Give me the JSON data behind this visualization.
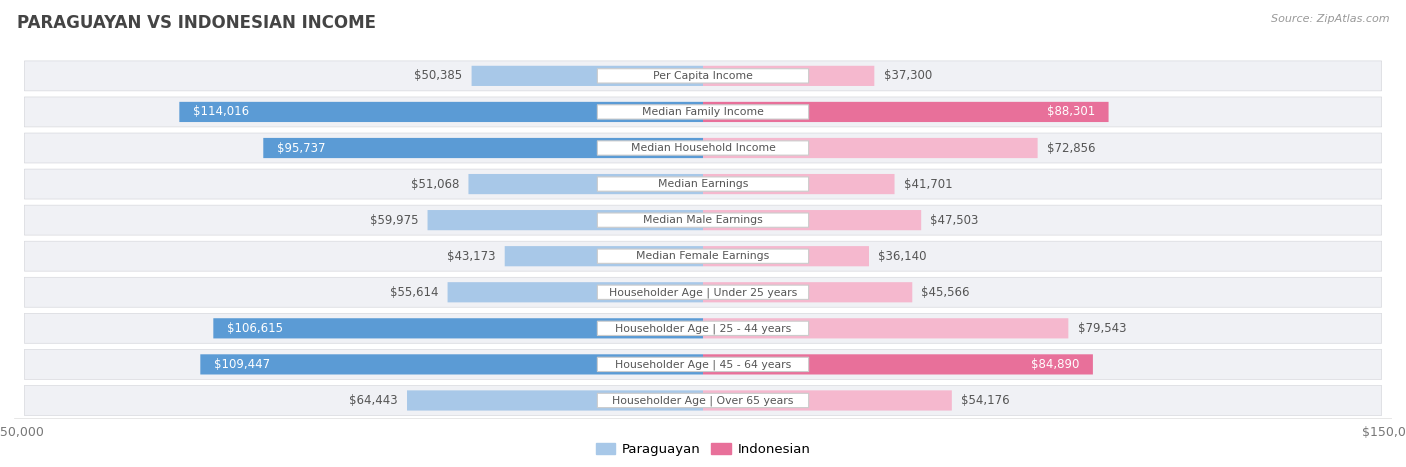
{
  "title": "PARAGUAYAN VS INDONESIAN INCOME",
  "source": "Source: ZipAtlas.com",
  "categories": [
    "Per Capita Income",
    "Median Family Income",
    "Median Household Income",
    "Median Earnings",
    "Median Male Earnings",
    "Median Female Earnings",
    "Householder Age | Under 25 years",
    "Householder Age | 25 - 44 years",
    "Householder Age | 45 - 64 years",
    "Householder Age | Over 65 years"
  ],
  "paraguayan_values": [
    50385,
    114016,
    95737,
    51068,
    59975,
    43173,
    55614,
    106615,
    109447,
    64443
  ],
  "indonesian_values": [
    37300,
    88301,
    72856,
    41701,
    47503,
    36140,
    45566,
    79543,
    84890,
    54176
  ],
  "max_val": 150000,
  "paraguayan_color_low": "#a8c8e8",
  "paraguayan_color_high": "#5b9bd5",
  "indonesian_color_low": "#f5b8ce",
  "indonesian_color_high": "#e8709a",
  "label_color_outside": "#555555",
  "label_color_inside": "#ffffff",
  "threshold": 80000,
  "row_bg": "#f0f1f5",
  "center_label_color": "#555555",
  "legend_paraguayan": "Paraguayan",
  "legend_indonesian": "Indonesian",
  "title_color": "#444444",
  "source_color": "#999999"
}
